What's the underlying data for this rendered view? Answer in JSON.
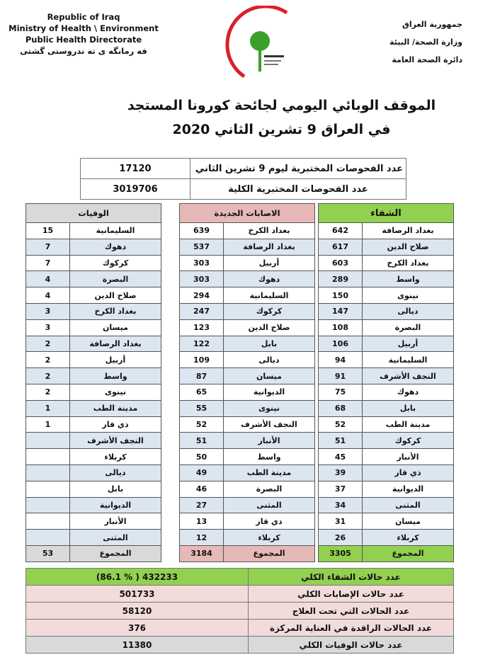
{
  "header": {
    "en": [
      "Republic of Iraq",
      "Ministry of Health \\ Environment",
      "Public Health Directorate",
      "فه رمانگه ی ته ندروستی گشتی"
    ],
    "ar": [
      "جمهورية العراق",
      "وزارة الصحة/ البيئة",
      "دائرة الصحة العامة"
    ],
    "logo_text": "وزارة الصحة العراقية - Iraqi Ministry of Health",
    "logo_colors": {
      "arc": "#d9202a",
      "tree": "#3aa02a"
    }
  },
  "title": {
    "line1": "الموقف الوبائي اليومي لجائحة كورونا المستجد",
    "line2": "في العراق  9  تشرين الثاني 2020"
  },
  "tests": [
    {
      "label": "عدد الفحوصات المختبرية  ليوم 9 تشرين الثاني",
      "value": "17120"
    },
    {
      "label": "عدد الفحوصات المختبرية الكلية",
      "value": "3019706"
    }
  ],
  "tables": [
    {
      "id": "recovered",
      "title": "الشفاء",
      "color": "#92d050",
      "rows": [
        [
          "بغداد الرصافة",
          "642"
        ],
        [
          "صلاح الدين",
          "617"
        ],
        [
          "بغداد الكرخ",
          "603"
        ],
        [
          "واسط",
          "289"
        ],
        [
          "نينوى",
          "150"
        ],
        [
          "ديالى",
          "147"
        ],
        [
          "البصرة",
          "108"
        ],
        [
          "أربيل",
          "106"
        ],
        [
          "السليمانية",
          "94"
        ],
        [
          "النجف الأشرف",
          "91"
        ],
        [
          "دهوك",
          "75"
        ],
        [
          "بابل",
          "68"
        ],
        [
          "مدينة الطب",
          "52"
        ],
        [
          "كركوك",
          "51"
        ],
        [
          "الأنبار",
          "45"
        ],
        [
          "ذي قار",
          "39"
        ],
        [
          "الديوانية",
          "37"
        ],
        [
          "المثنى",
          "34"
        ],
        [
          "ميسان",
          "31"
        ],
        [
          "كربلاء",
          "26"
        ]
      ],
      "total_label": "المجموع",
      "total": "3305"
    },
    {
      "id": "new-cases",
      "title": "الاصابات الجديدة",
      "color": "#e6b8b7",
      "rows": [
        [
          "بغداد الكرخ",
          "639"
        ],
        [
          "بغداد الرصافة",
          "537"
        ],
        [
          "أربيل",
          "303"
        ],
        [
          "دهوك",
          "303"
        ],
        [
          "السليمانية",
          "294"
        ],
        [
          "كركوك",
          "247"
        ],
        [
          "صلاح الدين",
          "123"
        ],
        [
          "بابل",
          "122"
        ],
        [
          "ديالى",
          "109"
        ],
        [
          "ميسان",
          "87"
        ],
        [
          "الديوانية",
          "65"
        ],
        [
          "نينوى",
          "55"
        ],
        [
          "النجف الأشرف",
          "52"
        ],
        [
          "الأنبار",
          "51"
        ],
        [
          "واسط",
          "50"
        ],
        [
          "مدينة الطب",
          "49"
        ],
        [
          "البصرة",
          "46"
        ],
        [
          "المثنى",
          "27"
        ],
        [
          "ذي قار",
          "13"
        ],
        [
          "كربلاء",
          "12"
        ]
      ],
      "total_label": "المجموع",
      "total": "3184"
    },
    {
      "id": "deaths",
      "title": "الوفيات",
      "color": "#d9d9d9",
      "rows": [
        [
          "السليمانية",
          "15"
        ],
        [
          "دهوك",
          "7"
        ],
        [
          "كركوك",
          "7"
        ],
        [
          "البصرة",
          "4"
        ],
        [
          "صلاح الدين",
          "4"
        ],
        [
          "بغداد الكرخ",
          "3"
        ],
        [
          "ميسان",
          "3"
        ],
        [
          "بغداد الرصافة",
          "2"
        ],
        [
          "أربيل",
          "2"
        ],
        [
          "واسط",
          "2"
        ],
        [
          "نينوى",
          "2"
        ],
        [
          "مدينة الطب",
          "1"
        ],
        [
          "ذي قار",
          "1"
        ],
        [
          "النجف الأشرف",
          ""
        ],
        [
          "كربلاء",
          ""
        ],
        [
          "ديالى",
          ""
        ],
        [
          "بابل",
          ""
        ],
        [
          "الديوانية",
          ""
        ],
        [
          "الأنبار",
          ""
        ],
        [
          "المثنى",
          ""
        ]
      ],
      "total_label": "المجموع",
      "total": "53"
    }
  ],
  "summary": [
    {
      "label": "عدد حالات الشفاء الكلي",
      "value": "(86.1 % )    432233",
      "color": "#92d050"
    },
    {
      "label": "عدد حالات الإصابات الكلي",
      "value": "501733",
      "color": "#f2dcdb"
    },
    {
      "label": "عدد الحالات التي تحت العلاج",
      "value": "58120",
      "color": "#f2dcdb"
    },
    {
      "label": "عدد الحالات الراقدة في العناية المركزة",
      "value": "376",
      "color": "#f2dcdb"
    },
    {
      "label": "عدد حالات الوفيات الكلي",
      "value": "11380",
      "color": "#d9d9d9"
    }
  ]
}
